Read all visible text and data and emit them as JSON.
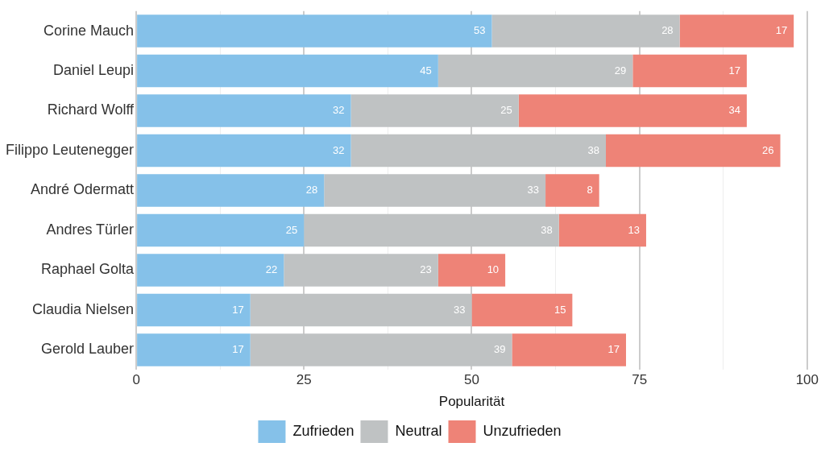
{
  "chart_data": {
    "type": "bar",
    "orientation": "horizontal",
    "stacked": true,
    "xlabel": "Popularität",
    "categories": [
      "Corine Mauch",
      "Daniel Leupi",
      "Richard Wolff",
      "Filippo Leutenegger",
      "André Odermatt",
      "Andres Türler",
      "Raphael Golta",
      "Claudia Nielsen",
      "Gerold Lauber"
    ],
    "series": [
      {
        "name": "Zufrieden",
        "color": "#85c1e9",
        "values": [
          53,
          45,
          32,
          32,
          28,
          25,
          22,
          17,
          17
        ]
      },
      {
        "name": "Neutral",
        "color": "#bfc2c3",
        "values": [
          28,
          29,
          25,
          38,
          33,
          38,
          23,
          33,
          39
        ]
      },
      {
        "name": "Unzufrieden",
        "color": "#ee8377",
        "values": [
          17,
          17,
          34,
          26,
          8,
          13,
          10,
          15,
          17
        ]
      }
    ],
    "xlim": [
      0,
      100
    ],
    "xticks": [
      0,
      {
        "value": 12.5,
        "label": null
      },
      25,
      {
        "value": 37.5,
        "label": null
      },
      50,
      {
        "value": 62.5,
        "label": null
      },
      75,
      {
        "value": 87.5,
        "label": null
      },
      100
    ],
    "grid": "x",
    "legend": "bottom",
    "data_labels": true
  }
}
